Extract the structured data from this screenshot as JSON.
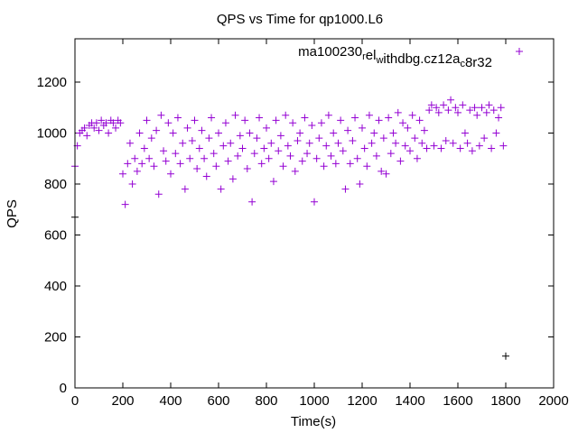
{
  "chart_data": {
    "type": "scatter",
    "title": "QPS vs Time for qp1000.L6",
    "xlabel": "Time(s)",
    "ylabel": "QPS",
    "xlim": [
      0,
      2000
    ],
    "ylim": [
      0,
      1350
    ],
    "xticks": [
      0,
      200,
      400,
      600,
      800,
      1000,
      1200,
      1400,
      1600,
      1800,
      2000
    ],
    "yticks": [
      0,
      200,
      400,
      600,
      800,
      1000,
      1200
    ],
    "grid": false,
    "legend_position": "top-right",
    "series": [
      {
        "name": "ma100230_rel_withdbg.cz12a_c8r32",
        "color": "#9400d3",
        "marker": "plus",
        "x_start": 0,
        "x_step": 10,
        "values": [
          870,
          950,
          1000,
          1010,
          1020,
          990,
          1030,
          1040,
          1020,
          1040,
          1010,
          1050,
          1030,
          1040,
          1000,
          1050,
          1040,
          1020,
          1050,
          1040,
          840,
          720,
          880,
          960,
          800,
          900,
          850,
          1000,
          880,
          940,
          1050,
          900,
          980,
          870,
          1010,
          760,
          1070,
          930,
          890,
          1040,
          840,
          1000,
          920,
          1060,
          880,
          960,
          780,
          1020,
          900,
          970,
          1050,
          860,
          940,
          1010,
          900,
          830,
          980,
          1060,
          920,
          870,
          1000,
          780,
          950,
          1040,
          890,
          960,
          820,
          1070,
          910,
          990,
          940,
          1050,
          860,
          1000,
          730,
          920,
          980,
          1060,
          880,
          940,
          1020,
          900,
          960,
          810,
          1050,
          930,
          990,
          870,
          1070,
          950,
          910,
          1040,
          850,
          970,
          1000,
          890,
          1060,
          920,
          960,
          1030,
          730,
          900,
          980,
          1040,
          870,
          950,
          1070,
          910,
          1000,
          880,
          960,
          1050,
          930,
          780,
          1010,
          880,
          970,
          1060,
          900,
          800,
          1020,
          940,
          870,
          1070,
          960,
          1000,
          910,
          1050,
          850,
          980,
          840,
          1060,
          920,
          1000,
          960,
          1080,
          890,
          1040,
          950,
          1020,
          930,
          1070,
          980,
          900,
          1050,
          960,
          1010,
          940,
          1090,
          1110,
          950,
          1100,
          1080,
          940,
          1110,
          970,
          1090,
          1130,
          960,
          1100,
          1080,
          940,
          1110,
          1000,
          960,
          1090,
          930,
          1100,
          1070,
          950,
          1100,
          980,
          1080,
          1110,
          940,
          1090,
          1000,
          1060,
          1100,
          950,
          125
        ],
        "extra_points": [
          [
            0,
            670
          ]
        ]
      }
    ]
  }
}
